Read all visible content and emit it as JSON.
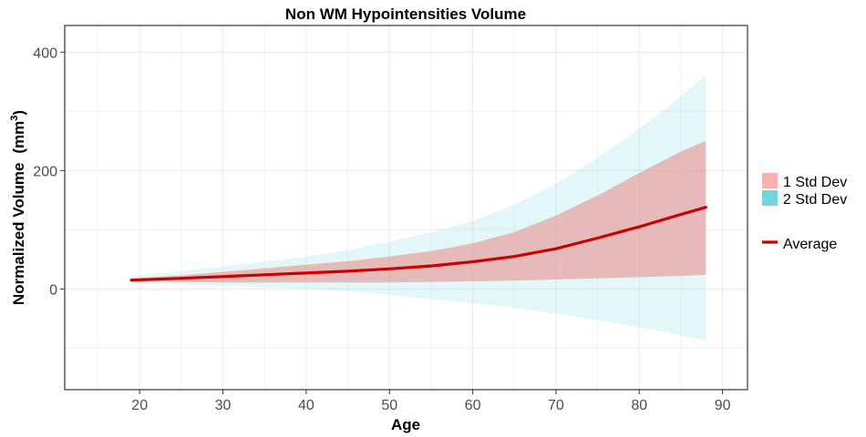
{
  "chart_data": {
    "type": "area",
    "title": "Non WM Hypointensities Volume",
    "xlabel": "Age",
    "ylabel_main": "Normalized Volume",
    "ylabel_unit_base": "(mm",
    "ylabel_unit_sup": "3",
    "ylabel_unit_close": ")",
    "xlim": [
      11,
      93
    ],
    "ylim": [
      -170,
      445
    ],
    "xticks": [
      20,
      30,
      40,
      50,
      60,
      70,
      80,
      90
    ],
    "yticks": [
      0,
      200,
      400
    ],
    "grid": true,
    "legend_position": "right",
    "x": [
      19,
      25,
      30,
      35,
      40,
      45,
      50,
      55,
      60,
      65,
      70,
      75,
      80,
      85,
      88
    ],
    "series": [
      {
        "name": "Average",
        "color": "#cc0000",
        "values": [
          15,
          18,
          21,
          24,
          27,
          30,
          34,
          39,
          46,
          55,
          68,
          86,
          105,
          126,
          138
        ]
      }
    ],
    "bands": [
      {
        "name": "2 Std Dev",
        "color": "#7fdbdf",
        "lower": [
          10,
          8,
          6,
          3,
          0,
          -4,
          -10,
          -17,
          -24,
          -32,
          -42,
          -53,
          -65,
          -78,
          -88
        ],
        "upper": [
          22,
          30,
          38,
          46,
          55,
          66,
          80,
          96,
          115,
          142,
          178,
          222,
          270,
          325,
          362
        ]
      },
      {
        "name": "1 Std Dev",
        "color": "#e8918d",
        "lower": [
          13,
          12,
          11,
          11,
          11,
          11,
          11,
          12,
          13,
          14,
          16,
          18,
          20,
          22,
          24
        ],
        "upper": [
          18,
          23,
          29,
          35,
          41,
          47,
          55,
          64,
          77,
          96,
          124,
          158,
          196,
          232,
          250
        ]
      }
    ],
    "legend": [
      {
        "label": "1 Std Dev",
        "color": "#f8b1ac",
        "kind": "fill"
      },
      {
        "label": "2 Std Dev",
        "color": "#70d8da",
        "kind": "fill"
      },
      {
        "label": "Average",
        "color": "#cc0000",
        "kind": "line"
      }
    ]
  }
}
